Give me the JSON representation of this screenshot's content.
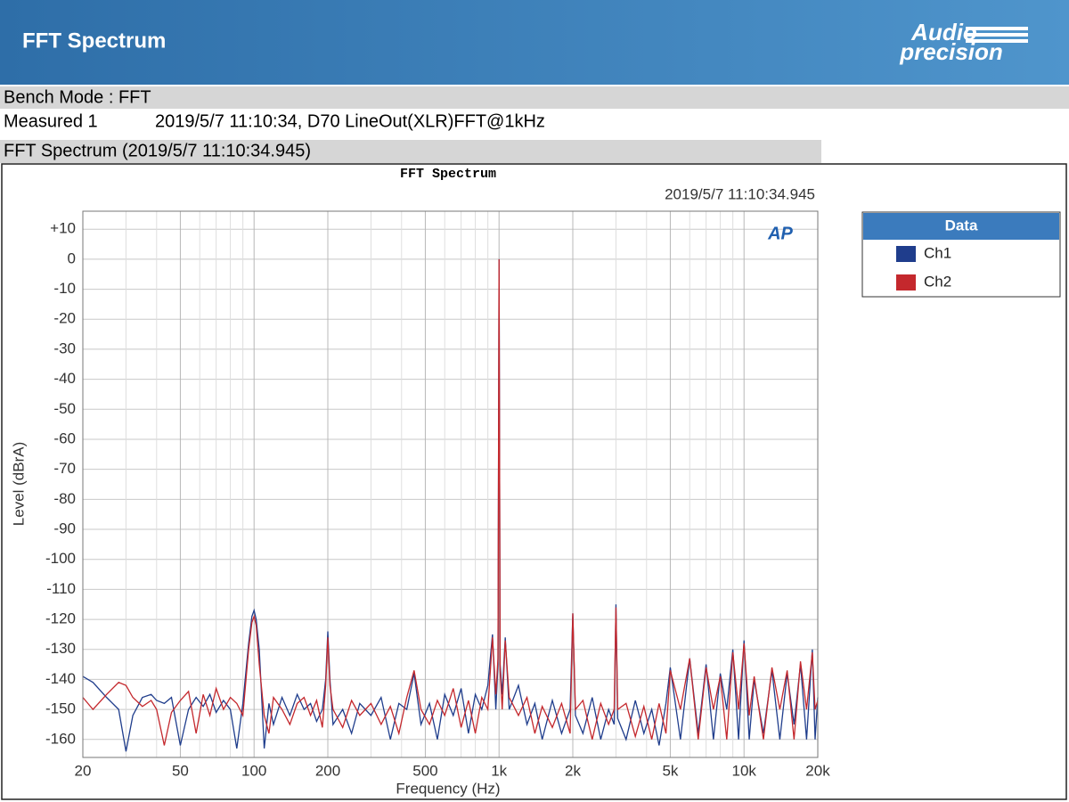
{
  "header": {
    "title": "FFT Spectrum",
    "logo": [
      "Audio",
      "precision"
    ]
  },
  "info": {
    "bench_mode": "Bench Mode : FFT",
    "measured_label": "Measured 1",
    "measured_value": "2019/5/7 11:10:34, D70 LineOut(XLR)FFT@1kHz",
    "section_title": "FFT Spectrum (2019/5/7 11:10:34.945)"
  },
  "chart_data": {
    "type": "line",
    "title": "FFT Spectrum",
    "subtitle": "2019/5/7 11:10:34.945",
    "xlabel": "Frequency (Hz)",
    "ylabel": "Level (dBrA)",
    "logo": "AP",
    "x_log": true,
    "grid": true,
    "legend": "right",
    "legend_title": "Data",
    "xlim": [
      20,
      20000
    ],
    "ylim": [
      -166,
      16
    ],
    "xticks": [
      20,
      50,
      100,
      200,
      500,
      {
        "value": 1000,
        "label": "1k"
      },
      {
        "value": 2000,
        "label": "2k"
      },
      {
        "value": 5000,
        "label": "5k"
      },
      {
        "value": 10000,
        "label": "10k"
      },
      {
        "value": 20000,
        "label": "20k"
      }
    ],
    "xminorticks": [
      30,
      40,
      60,
      70,
      80,
      90,
      300,
      400,
      600,
      700,
      800,
      900,
      3000,
      4000,
      6000,
      7000,
      8000,
      9000
    ],
    "yticks": [
      {
        "value": 10,
        "label": "+10"
      },
      0,
      -10,
      -20,
      -30,
      -40,
      -50,
      -60,
      -70,
      -80,
      -90,
      -100,
      -110,
      -120,
      -130,
      -140,
      -150,
      -160
    ],
    "x": [
      20,
      22,
      25,
      28,
      30,
      32,
      35,
      38,
      40,
      43,
      46,
      50,
      54,
      58,
      62,
      66,
      70,
      75,
      80,
      85,
      90,
      95,
      98,
      100,
      102,
      105,
      110,
      115,
      120,
      130,
      140,
      150,
      160,
      170,
      180,
      190,
      196,
      200,
      204,
      210,
      230,
      250,
      270,
      300,
      330,
      360,
      390,
      420,
      450,
      480,
      520,
      560,
      600,
      650,
      700,
      750,
      800,
      850,
      900,
      940,
      970,
      990,
      1000,
      1010,
      1030,
      1060,
      1100,
      1200,
      1300,
      1400,
      1500,
      1650,
      1800,
      1950,
      2000,
      2050,
      2200,
      2400,
      2600,
      2800,
      2950,
      3000,
      3050,
      3300,
      3600,
      3900,
      4200,
      4500,
      4800,
      5000,
      5500,
      6000,
      6500,
      7000,
      7500,
      8000,
      8500,
      9000,
      9500,
      10000,
      10500,
      11000,
      12000,
      13000,
      14000,
      15000,
      16000,
      17000,
      18000,
      19000,
      19500,
      20000
    ],
    "series": [
      {
        "name": "Ch1",
        "color": "#1f3d8c",
        "values": [
          -139,
          -141,
          -146,
          -150,
          -164,
          -152,
          -146,
          -145,
          -147,
          -148,
          -146,
          -162,
          -150,
          -146,
          -149,
          -145,
          -151,
          -147,
          -150,
          -163,
          -148,
          -128,
          -119,
          -117,
          -120,
          -130,
          -163,
          -148,
          -155,
          -146,
          -152,
          -145,
          -150,
          -148,
          -154,
          -150,
          -140,
          -124,
          -140,
          -155,
          -150,
          -158,
          -148,
          -152,
          -146,
          -160,
          -148,
          -150,
          -138,
          -155,
          -148,
          -160,
          -145,
          -152,
          -143,
          -158,
          -145,
          -150,
          -142,
          -125,
          -150,
          -135,
          0,
          -135,
          -145,
          -126,
          -150,
          -142,
          -155,
          -148,
          -160,
          -147,
          -158,
          -150,
          -118,
          -152,
          -158,
          -146,
          -160,
          -150,
          -155,
          -115,
          -153,
          -160,
          -147,
          -158,
          -150,
          -162,
          -148,
          -136,
          -160,
          -133,
          -158,
          -135,
          -160,
          -138,
          -150,
          -130,
          -160,
          -127,
          -160,
          -140,
          -158,
          -137,
          -160,
          -138,
          -155,
          -135,
          -160,
          -130,
          -160,
          -146
        ]
      },
      {
        "name": "Ch2",
        "color": "#c4282d",
        "values": [
          -146,
          -150,
          -145,
          -141,
          -142,
          -146,
          -149,
          -147,
          -150,
          -162,
          -151,
          -147,
          -144,
          -158,
          -145,
          -152,
          -143,
          -150,
          -146,
          -148,
          -152,
          -130,
          -121,
          -119,
          -122,
          -135,
          -152,
          -158,
          -146,
          -150,
          -155,
          -148,
          -146,
          -152,
          -147,
          -156,
          -142,
          -126,
          -142,
          -150,
          -156,
          -147,
          -152,
          -148,
          -155,
          -149,
          -158,
          -146,
          -137,
          -150,
          -155,
          -147,
          -152,
          -143,
          -156,
          -147,
          -158,
          -146,
          -150,
          -126,
          -145,
          -133,
          0,
          -137,
          -150,
          -127,
          -146,
          -152,
          -146,
          -158,
          -149,
          -156,
          -148,
          -158,
          -118,
          -150,
          -147,
          -160,
          -148,
          -155,
          -150,
          -116,
          -150,
          -148,
          -159,
          -149,
          -160,
          -148,
          -158,
          -137,
          -150,
          -133,
          -160,
          -136,
          -150,
          -139,
          -160,
          -131,
          -150,
          -128,
          -152,
          -139,
          -160,
          -136,
          -150,
          -137,
          -160,
          -134,
          -150,
          -131,
          -150,
          -147
        ]
      }
    ]
  }
}
